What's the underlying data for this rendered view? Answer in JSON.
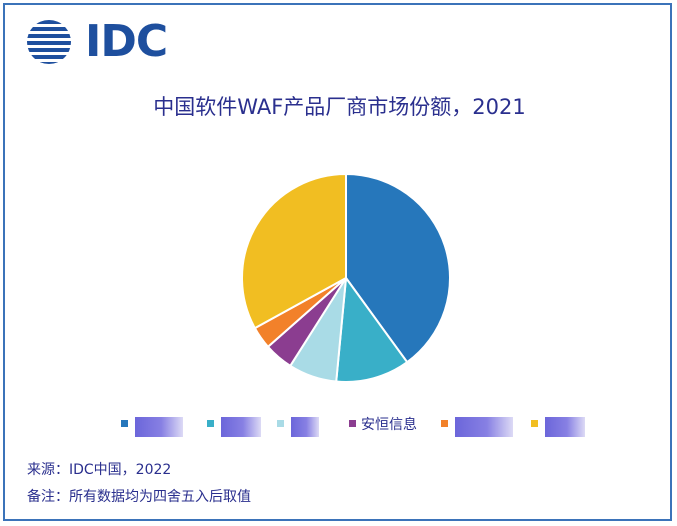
{
  "logo": {
    "text": "IDC",
    "color": "#1e4f9e"
  },
  "chart_data": {
    "type": "pie",
    "title": "中国软件WAF产品厂商市场份额，2021",
    "slices": [
      {
        "label": "",
        "value": 40.0,
        "color": "#2677bb"
      },
      {
        "label": "",
        "value": 11.5,
        "color": "#39afc8"
      },
      {
        "label": "",
        "value": 7.5,
        "color": "#a9dbe6"
      },
      {
        "label": "安恒信息",
        "value": 4.5,
        "color": "#8b3d90"
      },
      {
        "label": "",
        "value": 3.5,
        "color": "#f2812a"
      },
      {
        "label": "",
        "value": 33.0,
        "color": "#f1be22"
      }
    ],
    "start_angle_deg": 0,
    "direction": "clockwise",
    "legend_position": "bottom"
  },
  "footer": {
    "source": "来源：IDC中国，2022",
    "note": "备注：所有数据均为四舍五入后取值"
  }
}
